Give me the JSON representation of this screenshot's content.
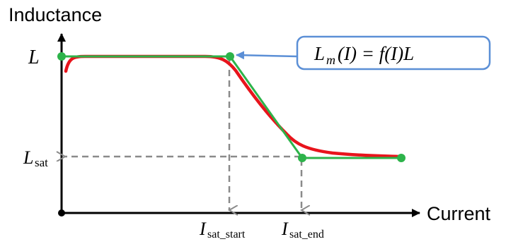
{
  "axes": {
    "y_title": "Inductance",
    "x_title": "Current"
  },
  "labels": {
    "l_symbol": "L",
    "lsat_main": "L",
    "lsat_sub": "sat",
    "isat_start_main": "I",
    "isat_start_sub": "sat_start",
    "isat_end_main": "I",
    "isat_end_sub": "sat_end"
  },
  "callout": {
    "lhs_main": "L",
    "lhs_sub": "m",
    "lhs_arg": "(I) = f(I)L"
  },
  "colors": {
    "curve_real": "#e8141c",
    "curve_approx": "#2db34a",
    "callout_border": "#5b8fd6",
    "pointer": "#5b8fd6",
    "dashed": "#8a8a8a"
  }
}
